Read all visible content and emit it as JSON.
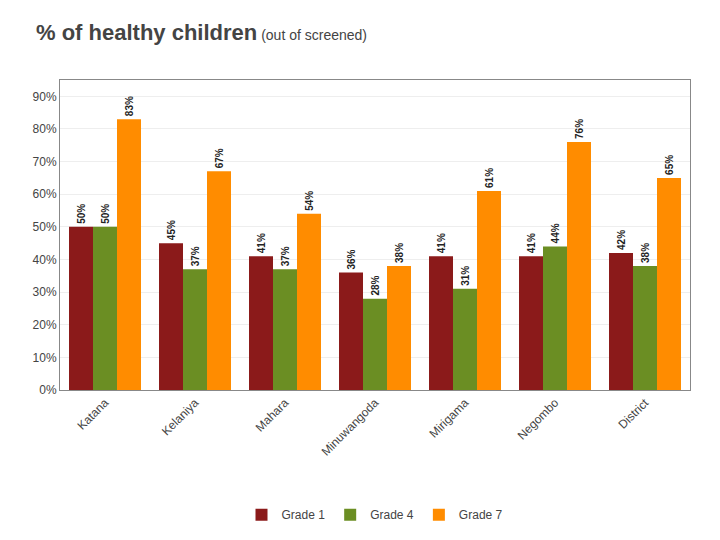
{
  "chart_data": {
    "type": "bar",
    "title": "% of healthy children",
    "subtitle": " (out of screened)",
    "categories": [
      "Katana",
      "Kelaniya",
      "Mahara",
      "Minuwangoda",
      "Mirigama",
      "Negombo",
      "District"
    ],
    "series": [
      {
        "name": "Grade 1",
        "color": "#8B1A1A",
        "values": [
          50,
          45,
          41,
          36,
          41,
          41,
          42
        ],
        "value_labels": [
          "50%",
          "45%",
          "41%",
          "36%",
          "41%",
          "41%",
          "42%"
        ]
      },
      {
        "name": "Grade 4",
        "color": "#6B8E23",
        "values": [
          50,
          37,
          37,
          28,
          31,
          44,
          38
        ],
        "value_labels": [
          "50%",
          "37%",
          "37%",
          "28%",
          "31%",
          "44%",
          "38%"
        ]
      },
      {
        "name": "Grade 7",
        "color": "#FF8C00",
        "values": [
          83,
          67,
          54,
          38,
          61,
          76,
          65
        ],
        "value_labels": [
          "83%",
          "67%",
          "54%",
          "38%",
          "61%",
          "76%",
          "65%"
        ]
      }
    ],
    "ylim": [
      0,
      95
    ],
    "yticks": [
      {
        "value": 0,
        "label": "0%"
      },
      {
        "value": 10,
        "label": "10%"
      },
      {
        "value": 20,
        "label": "20%"
      },
      {
        "value": 30,
        "label": "30%"
      },
      {
        "value": 40,
        "label": "40%"
      },
      {
        "value": 50,
        "label": "50%"
      },
      {
        "value": 60,
        "label": "60%"
      },
      {
        "value": 70,
        "label": "70%"
      },
      {
        "value": 80,
        "label": "80%"
      },
      {
        "value": 90,
        "label": "90%"
      }
    ],
    "grid": true,
    "legend": "bottom",
    "data_labels": true
  }
}
